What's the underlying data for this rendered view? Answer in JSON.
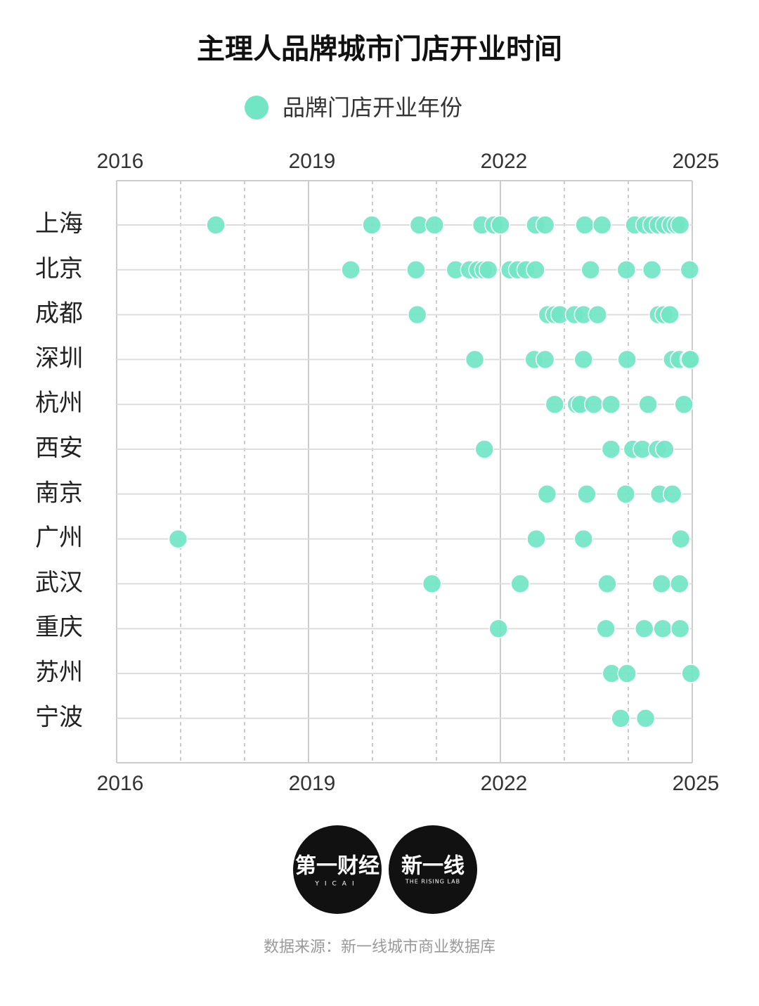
{
  "chart_data": {
    "type": "strip",
    "title": "主理人品牌城市门店开业时间",
    "categories": [
      "上海",
      "北京",
      "成都",
      "深圳",
      "杭州",
      "西安",
      "南京",
      "广州",
      "武汉",
      "重庆",
      "苏州",
      "宁波"
    ],
    "series": [
      {
        "name": "品牌门店开业年份",
        "color": "#72e6c4",
        "values": [
          [
            2017.55,
            2019.99,
            2020.73,
            2020.97,
            2021.71,
            2021.9,
            2022.0,
            2022.55,
            2022.7,
            2023.32,
            2023.59,
            2024.1,
            2024.26,
            2024.37,
            2024.47,
            2024.57,
            2024.67,
            2024.75,
            2024.81
          ],
          [
            2019.66,
            2020.68,
            2021.3,
            2021.52,
            2021.65,
            2021.74,
            2021.81,
            2022.15,
            2022.27,
            2022.4,
            2022.55,
            2023.41,
            2023.97,
            2024.37,
            2024.96
          ],
          [
            2020.7,
            2022.74,
            2022.85,
            2022.93,
            2023.16,
            2023.3,
            2023.52,
            2024.47,
            2024.56,
            2024.65
          ],
          [
            2021.6,
            2022.53,
            2022.7,
            2023.3,
            2023.98,
            2024.69,
            2024.8,
            2024.95,
            2024.97
          ],
          [
            2022.85,
            2023.19,
            2023.25,
            2023.46,
            2023.73,
            2024.31,
            2024.87
          ],
          [
            2021.75,
            2023.73,
            2024.07,
            2024.22,
            2024.46,
            2024.57
          ],
          [
            2022.73,
            2023.35,
            2023.96,
            2024.49,
            2024.69
          ],
          [
            2016.96,
            2022.56,
            2023.3,
            2024.82
          ],
          [
            2020.93,
            2022.31,
            2023.67,
            2024.52,
            2024.8
          ],
          [
            2021.97,
            2023.65,
            2024.25,
            2024.54,
            2024.81
          ],
          [
            2023.74,
            2023.98,
            2024.98
          ],
          [
            2023.88,
            2024.27
          ]
        ]
      }
    ],
    "xlim": [
      2016,
      2025
    ],
    "xticks": [
      2016,
      2019,
      2022,
      2025
    ],
    "minor_xticks": [
      2017,
      2018,
      2020,
      2021,
      2023,
      2024
    ],
    "grid": true,
    "legend": "top"
  },
  "logos": [
    {
      "text": "第一财经",
      "subtext": "YICAI"
    },
    {
      "text": "新一线",
      "subtext": "THE RISING LAB"
    }
  ],
  "source": "数据来源：新一线城市商业数据库"
}
